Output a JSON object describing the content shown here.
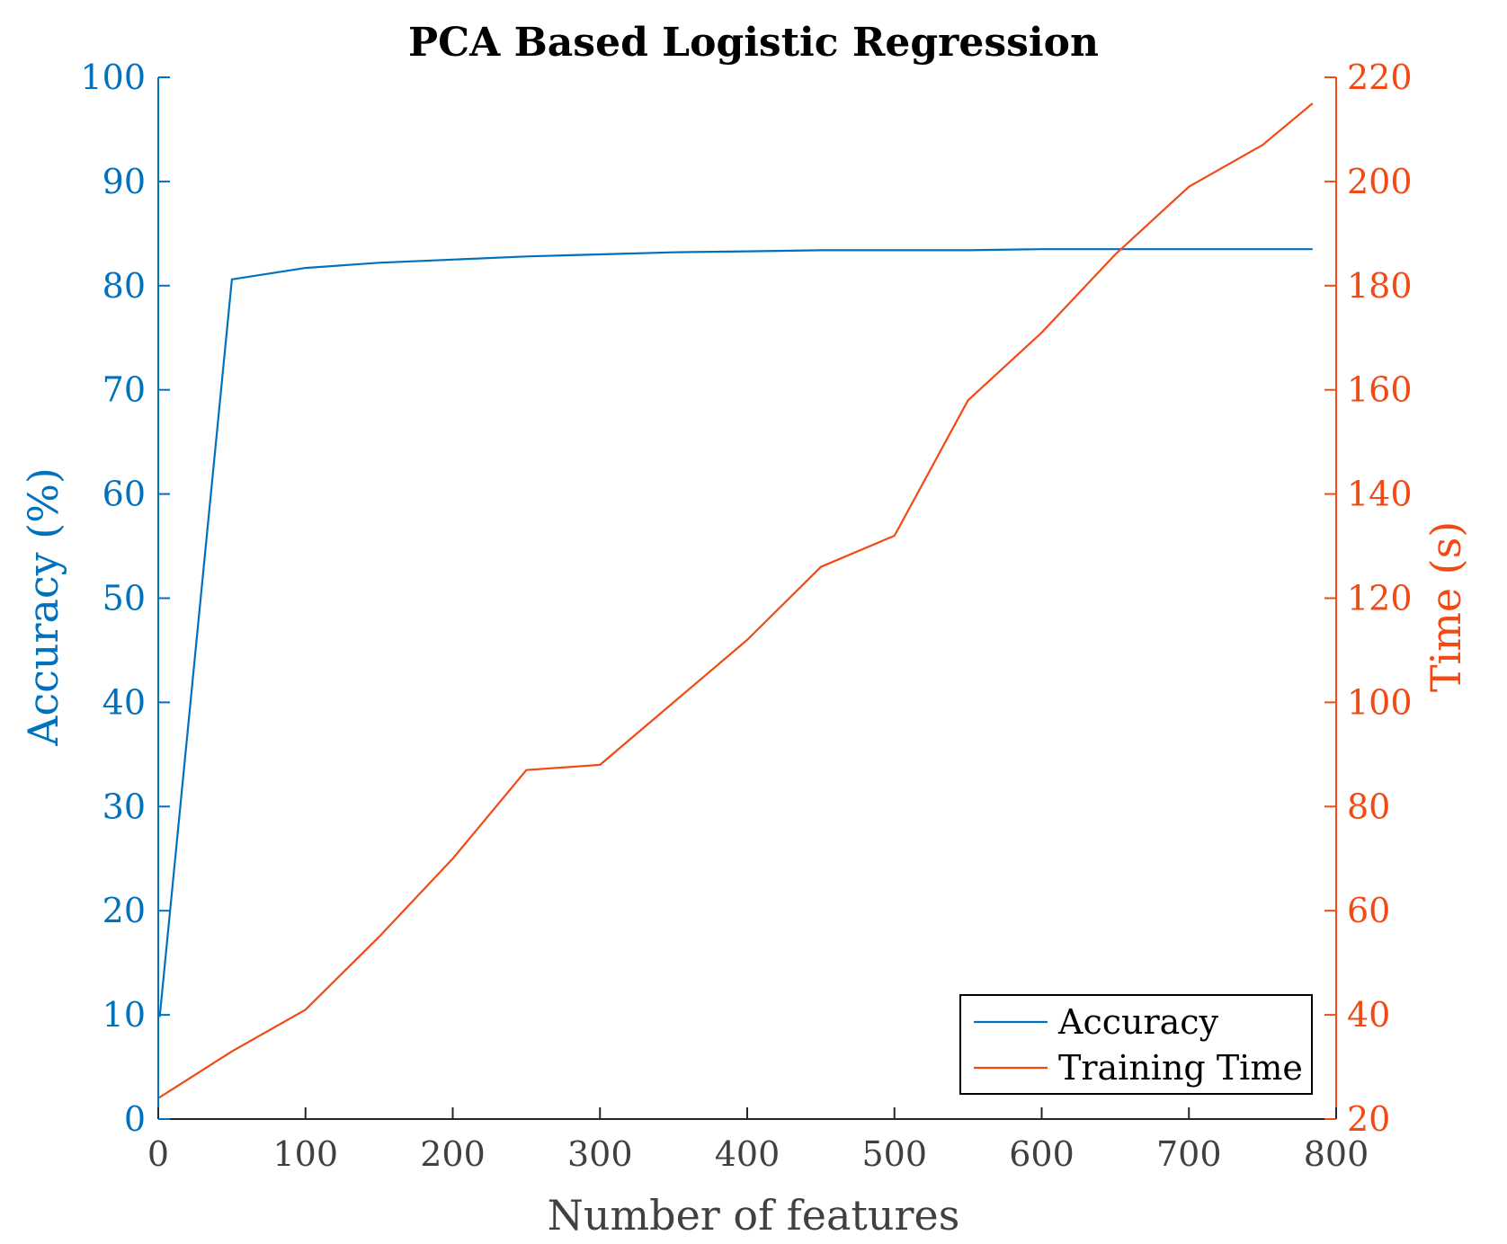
{
  "chart_data": {
    "type": "line",
    "title": "PCA Based Logistic Regression",
    "xlabel": "Number of features",
    "ylabel_left": "Accuracy (%)",
    "ylabel_right": "Time (s)",
    "xlim": [
      0,
      800
    ],
    "ylim_left": [
      0,
      100
    ],
    "ylim_right": [
      20,
      220
    ],
    "x_ticks": [
      "0",
      "100",
      "200",
      "300",
      "400",
      "500",
      "600",
      "700",
      "800"
    ],
    "y_left_ticks": [
      "0",
      "10",
      "20",
      "30",
      "40",
      "50",
      "60",
      "70",
      "80",
      "90",
      "100"
    ],
    "y_right_ticks": [
      "20",
      "40",
      "60",
      "80",
      "100",
      "120",
      "140",
      "160",
      "180",
      "200",
      "220"
    ],
    "grid": false,
    "legend_position": "bottom-right",
    "series": [
      {
        "name": "Accuracy",
        "axis": "left",
        "color": "#0072BD",
        "x": [
          1,
          50,
          100,
          150,
          200,
          250,
          300,
          350,
          400,
          450,
          500,
          550,
          600,
          650,
          700,
          750,
          784
        ],
        "values": [
          9.8,
          80.6,
          81.7,
          82.2,
          82.5,
          82.8,
          83.0,
          83.2,
          83.3,
          83.4,
          83.4,
          83.4,
          83.5,
          83.5,
          83.5,
          83.5,
          83.5
        ]
      },
      {
        "name": "Training Time",
        "axis": "right",
        "color": "#F14A14",
        "x": [
          0,
          50,
          100,
          150,
          200,
          250,
          300,
          350,
          400,
          450,
          500,
          550,
          600,
          650,
          700,
          750,
          784
        ],
        "values": [
          24,
          33,
          41,
          55,
          70,
          87,
          88,
          100,
          112,
          126,
          132,
          158,
          171,
          186,
          199,
          207,
          215
        ]
      }
    ]
  }
}
